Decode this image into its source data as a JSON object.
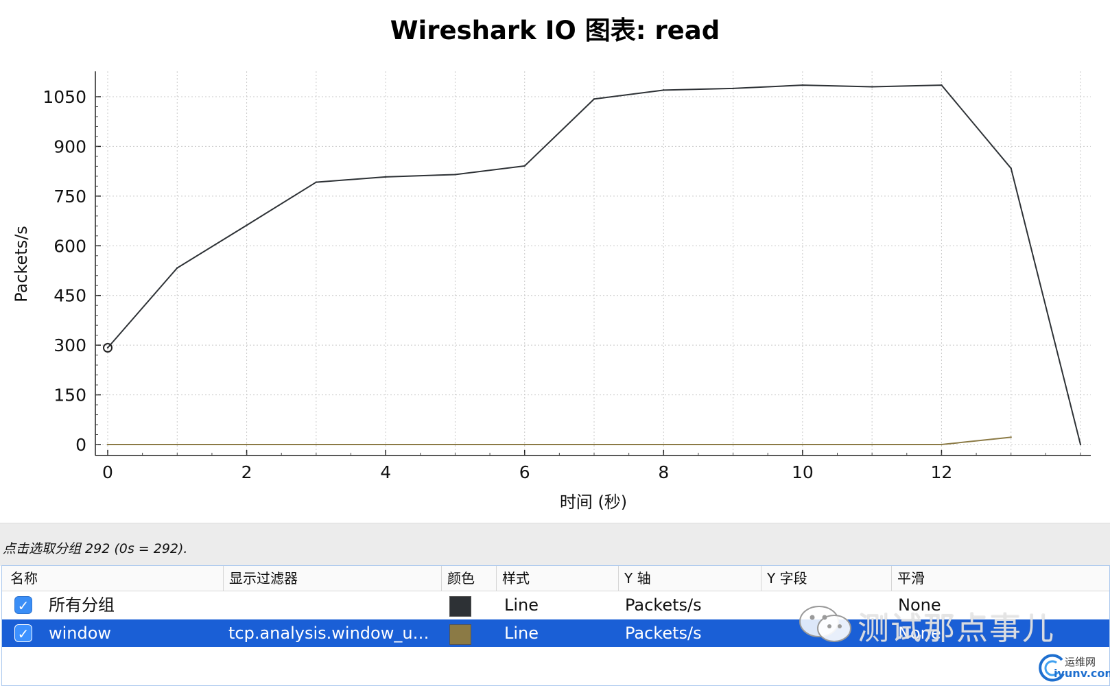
{
  "window": {
    "title": "Wireshark IO 图表: read",
    "status": "点击选取分组 292 (0s = 292)."
  },
  "chart_data": {
    "type": "line",
    "title": "Wireshark IO 图表: read",
    "xlabel": "时间 (秒)",
    "ylabel": "Packets/s",
    "xlim": [
      0,
      14
    ],
    "ylim": [
      0,
      1050
    ],
    "x_ticks": [
      0,
      2,
      4,
      6,
      8,
      10,
      12
    ],
    "y_ticks": [
      0,
      150,
      300,
      450,
      600,
      750,
      900,
      1050
    ],
    "grid": true,
    "series": [
      {
        "name": "所有分组",
        "color": "#2d3135",
        "x": [
          0,
          1,
          2,
          3,
          4,
          5,
          6,
          7,
          8,
          9,
          10,
          11,
          12,
          13,
          14
        ],
        "values": [
          292,
          533,
          662,
          792,
          808,
          815,
          841,
          1043,
          1070,
          1075,
          1085,
          1080,
          1085,
          834,
          0
        ]
      },
      {
        "name": "window",
        "color": "#8b7a45",
        "x": [
          0,
          1,
          2,
          3,
          4,
          5,
          6,
          7,
          8,
          9,
          10,
          11,
          12,
          13
        ],
        "values": [
          0,
          0,
          0,
          0,
          0,
          0,
          0,
          0,
          0,
          0,
          0,
          0,
          0,
          22
        ]
      }
    ],
    "marker": {
      "x": 0,
      "y": 292
    }
  },
  "table": {
    "headers": [
      "名称",
      "显示过滤器",
      "颜色",
      "样式",
      "Y 轴",
      "Y 字段",
      "平滑"
    ],
    "rows": [
      {
        "checked": true,
        "name": "所有分组",
        "filter": "",
        "color": "#2d3135",
        "style": "Line",
        "y_axis": "Packets/s",
        "y_field": "",
        "smoothing": "None",
        "selected": false
      },
      {
        "checked": true,
        "name": "window",
        "filter": "tcp.analysis.window_u…",
        "color": "#8b7a45",
        "style": "Line",
        "y_axis": "Packets/s",
        "y_field": "",
        "smoothing": "None",
        "selected": true
      }
    ]
  },
  "watermark": {
    "text": "测试那点事儿",
    "icon": "wechat-icon"
  },
  "site_logo": {
    "line1": "运维网",
    "line2": "iyunv.com"
  }
}
